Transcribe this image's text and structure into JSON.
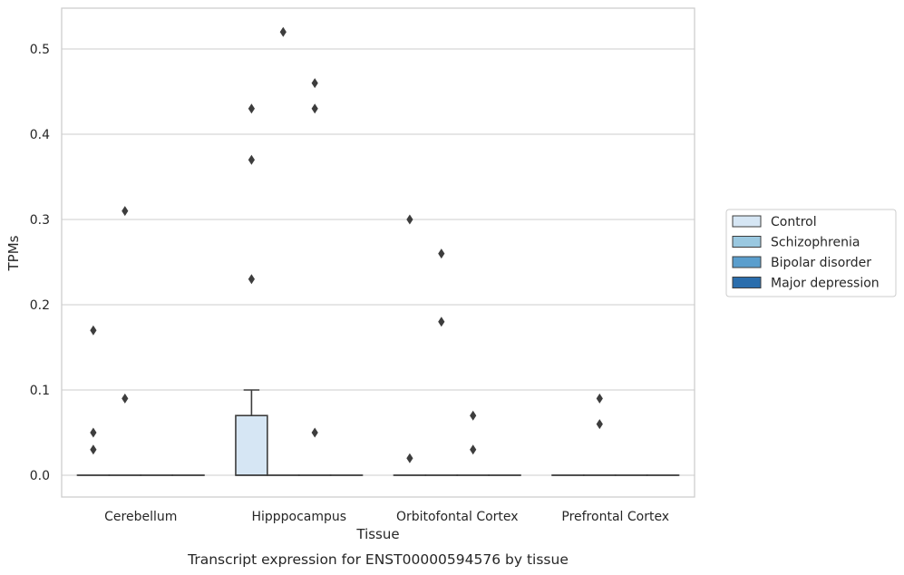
{
  "chart_data": {
    "type": "box",
    "caption": "Transcript expression for ENST00000594576 by tissue",
    "xlabel": "Tissue",
    "ylabel": "TPMs",
    "ylim": [
      -0.026,
      0.545
    ],
    "yticks": [
      0.0,
      0.1,
      0.2,
      0.3,
      0.4,
      0.5
    ],
    "ytick_labels": [
      "0.0",
      "0.1",
      "0.2",
      "0.3",
      "0.4",
      "0.5"
    ],
    "grid": "horizontal",
    "legend_position": "right",
    "categories": [
      "Cerebellum",
      "Hipppocampus",
      "Orbitofontal Cortex",
      "Prefrontal Cortex"
    ],
    "series": [
      {
        "name": "Control",
        "color": "#d6e6f4",
        "boxes": [
          {
            "q1": 0,
            "median": 0,
            "q3": 0,
            "whisker_low": 0,
            "whisker_high": 0,
            "outliers": [
              0.03,
              0.05,
              0.17
            ]
          },
          {
            "q1": 0,
            "median": 0,
            "q3": 0.07,
            "whisker_low": 0,
            "whisker_high": 0.1,
            "outliers": [
              0.23,
              0.37,
              0.43
            ]
          },
          {
            "q1": 0,
            "median": 0,
            "q3": 0,
            "whisker_low": 0,
            "whisker_high": 0,
            "outliers": [
              0.02,
              0.3
            ]
          },
          {
            "q1": 0,
            "median": 0,
            "q3": 0,
            "whisker_low": 0,
            "whisker_high": 0,
            "outliers": []
          }
        ]
      },
      {
        "name": "Schizophrenia",
        "color": "#9ac8e0",
        "boxes": [
          {
            "q1": 0,
            "median": 0,
            "q3": 0,
            "whisker_low": 0,
            "whisker_high": 0,
            "outliers": [
              0.09,
              0.31
            ]
          },
          {
            "q1": 0,
            "median": 0,
            "q3": 0,
            "whisker_low": 0,
            "whisker_high": 0,
            "outliers": [
              0.52
            ]
          },
          {
            "q1": 0,
            "median": 0,
            "q3": 0,
            "whisker_low": 0,
            "whisker_high": 0,
            "outliers": [
              0.18,
              0.26
            ]
          },
          {
            "q1": 0,
            "median": 0,
            "q3": 0,
            "whisker_low": 0,
            "whisker_high": 0,
            "outliers": [
              0.06,
              0.09
            ]
          }
        ]
      },
      {
        "name": "Bipolar disorder",
        "color": "#5a9ecd",
        "boxes": [
          {
            "q1": 0,
            "median": 0,
            "q3": 0,
            "whisker_low": 0,
            "whisker_high": 0,
            "outliers": []
          },
          {
            "q1": 0,
            "median": 0,
            "q3": 0,
            "whisker_low": 0,
            "whisker_high": 0,
            "outliers": [
              0.05,
              0.43,
              0.46
            ]
          },
          {
            "q1": 0,
            "median": 0,
            "q3": 0,
            "whisker_low": 0,
            "whisker_high": 0,
            "outliers": [
              0.03,
              0.07
            ]
          },
          {
            "q1": 0,
            "median": 0,
            "q3": 0,
            "whisker_low": 0,
            "whisker_high": 0,
            "outliers": []
          }
        ]
      },
      {
        "name": "Major depression",
        "color": "#2a6dac",
        "boxes": [
          {
            "q1": 0,
            "median": 0,
            "q3": 0,
            "whisker_low": 0,
            "whisker_high": 0,
            "outliers": []
          },
          {
            "q1": 0,
            "median": 0,
            "q3": 0,
            "whisker_low": 0,
            "whisker_high": 0,
            "outliers": []
          },
          {
            "q1": 0,
            "median": 0,
            "q3": 0,
            "whisker_low": 0,
            "whisker_high": 0,
            "outliers": []
          },
          {
            "q1": 0,
            "median": 0,
            "q3": 0,
            "whisker_low": 0,
            "whisker_high": 0,
            "outliers": []
          }
        ]
      }
    ]
  }
}
